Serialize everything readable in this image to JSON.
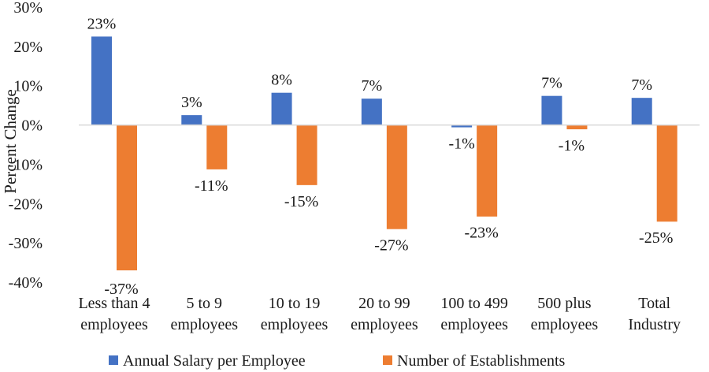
{
  "chart_data": {
    "type": "bar",
    "title": "",
    "xlabel": "",
    "ylabel": "Percent Change",
    "ylim": [
      -40,
      30
    ],
    "yticks": [
      30,
      20,
      10,
      0,
      -10,
      -20,
      -30,
      -40
    ],
    "ytick_labels": [
      "30%",
      "20%",
      "10%",
      "0%",
      "-10%",
      "-20%",
      "-30%",
      "-40%"
    ],
    "grid": false,
    "legend_position": "bottom",
    "categories": [
      [
        "Less than 4",
        "employees"
      ],
      [
        "5 to 9",
        "employees"
      ],
      [
        "10 to 19",
        "employees"
      ],
      [
        "20 to 99",
        "employees"
      ],
      [
        "100 to 499",
        "employees"
      ],
      [
        "500 plus",
        "employees"
      ],
      [
        "Total",
        "Industry"
      ]
    ],
    "series": [
      {
        "name": "Annual Salary per Employee",
        "color": "#4472c4",
        "values": [
          22.5,
          2.5,
          8.2,
          6.7,
          -0.6,
          7.4,
          6.9
        ],
        "labels": [
          "23%",
          "3%",
          "8%",
          "7%",
          "-1%",
          "7%",
          "7%"
        ]
      },
      {
        "name": "Number of Establishments",
        "color": "#ed7d31",
        "values": [
          -37,
          -11.3,
          -15.3,
          -26.5,
          -23.3,
          -1.1,
          -24.6
        ],
        "labels": [
          "-37%",
          "-11%",
          "-15%",
          "-27%",
          "-23%",
          "-1%",
          "-25%"
        ]
      }
    ]
  }
}
